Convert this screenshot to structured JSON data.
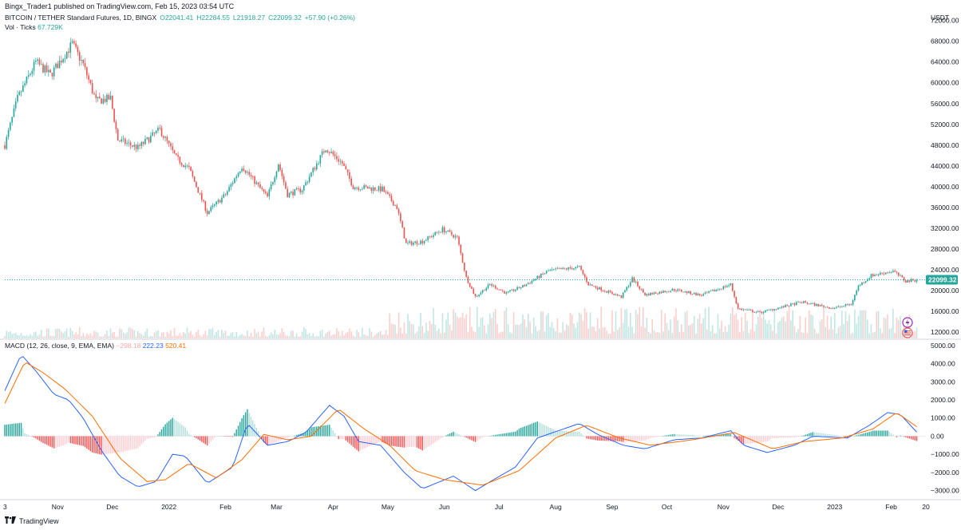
{
  "header": {
    "publisher_line": "Bingx_Trader1 published on TradingView.com, Feb 15, 2023 03:54 UTC",
    "symbol": "BITCOIN / TETHER Standard Futures, 1D, BINGX",
    "open": "O22041.41",
    "high": "H22284.55",
    "low": "L21918.27",
    "close": "C22099.32",
    "change": "+57.90 (+0.26%)",
    "vol_label": "Vol · Ticks",
    "vol_value": "67.729K",
    "macd_label": "MACD (12, 26, close, 9, EMA, EMA)",
    "macd_hist": "−298.18",
    "macd_line": "222.23",
    "macd_signal": "520.41",
    "currency": "USDT",
    "last_price_tag": "22099.32",
    "logo_text": "TradingView"
  },
  "colors": {
    "up": "#26a69a",
    "down": "#ef5350",
    "macd_line": "#2962ff",
    "signal_line": "#ff6d00",
    "last_price": "#26a69a"
  },
  "icons": [
    "flash-icon",
    "us-flag-icon",
    "tradingview-logo-icon"
  ],
  "chart_data": [
    {
      "type": "candlestick",
      "title": "BITCOIN / TETHER Standard Futures, 1D, BINGX",
      "x_ticks": [
        "3",
        "Nov",
        "Dec",
        "2022",
        "Feb",
        "Mar",
        "Apr",
        "May",
        "Jun",
        "Jul",
        "Aug",
        "Sep",
        "Oct",
        "Nov",
        "Dec",
        "2023",
        "Feb",
        "20"
      ],
      "y_ticks": [
        "72000.00",
        "68000.00",
        "64000.00",
        "60000.00",
        "56000.00",
        "52000.00",
        "48000.00",
        "44000.00",
        "40000.00",
        "36000.00",
        "32000.00",
        "28000.00",
        "24000.00",
        "20000.00",
        "16000.00",
        "12000.00"
      ],
      "ylim": [
        10800,
        74400
      ],
      "last_price": 22099.32,
      "close_path": [
        {
          "x": "2021-10-03",
          "y": 48000
        },
        {
          "x": "2021-10-10",
          "y": 57000
        },
        {
          "x": "2021-10-20",
          "y": 64000
        },
        {
          "x": "2021-10-28",
          "y": 61500
        },
        {
          "x": "2021-11-09",
          "y": 67500
        },
        {
          "x": "2021-11-15",
          "y": 63500
        },
        {
          "x": "2021-11-22",
          "y": 56500
        },
        {
          "x": "2021-11-30",
          "y": 57000
        },
        {
          "x": "2021-12-04",
          "y": 49000
        },
        {
          "x": "2021-12-15",
          "y": 47500
        },
        {
          "x": "2021-12-27",
          "y": 51000
        },
        {
          "x": "2022-01-05",
          "y": 45500
        },
        {
          "x": "2022-01-12",
          "y": 43500
        },
        {
          "x": "2022-01-22",
          "y": 35000
        },
        {
          "x": "2022-02-01",
          "y": 38500
        },
        {
          "x": "2022-02-10",
          "y": 44000
        },
        {
          "x": "2022-02-24",
          "y": 38000
        },
        {
          "x": "2022-03-02",
          "y": 44500
        },
        {
          "x": "2022-03-07",
          "y": 38500
        },
        {
          "x": "2022-03-15",
          "y": 39500
        },
        {
          "x": "2022-03-28",
          "y": 47500
        },
        {
          "x": "2022-04-06",
          "y": 44500
        },
        {
          "x": "2022-04-12",
          "y": 40000
        },
        {
          "x": "2022-04-28",
          "y": 39500
        },
        {
          "x": "2022-05-06",
          "y": 36000
        },
        {
          "x": "2022-05-11",
          "y": 29000
        },
        {
          "x": "2022-05-20",
          "y": 29500
        },
        {
          "x": "2022-05-31",
          "y": 31800
        },
        {
          "x": "2022-06-08",
          "y": 30200
        },
        {
          "x": "2022-06-13",
          "y": 22500
        },
        {
          "x": "2022-06-18",
          "y": 18800
        },
        {
          "x": "2022-06-26",
          "y": 21200
        },
        {
          "x": "2022-07-05",
          "y": 19500
        },
        {
          "x": "2022-07-15",
          "y": 21000
        },
        {
          "x": "2022-07-28",
          "y": 23800
        },
        {
          "x": "2022-08-14",
          "y": 24500
        },
        {
          "x": "2022-08-19",
          "y": 21200
        },
        {
          "x": "2022-09-06",
          "y": 18800
        },
        {
          "x": "2022-09-12",
          "y": 22300
        },
        {
          "x": "2022-09-19",
          "y": 19200
        },
        {
          "x": "2022-10-05",
          "y": 20200
        },
        {
          "x": "2022-10-20",
          "y": 19100
        },
        {
          "x": "2022-11-05",
          "y": 21200
        },
        {
          "x": "2022-11-09",
          "y": 16500
        },
        {
          "x": "2022-11-21",
          "y": 15800
        },
        {
          "x": "2022-12-05",
          "y": 17000
        },
        {
          "x": "2022-12-14",
          "y": 17800
        },
        {
          "x": "2022-12-31",
          "y": 16600
        },
        {
          "x": "2023-01-10",
          "y": 17400
        },
        {
          "x": "2023-01-14",
          "y": 20900
        },
        {
          "x": "2023-01-21",
          "y": 22900
        },
        {
          "x": "2023-02-02",
          "y": 23800
        },
        {
          "x": "2023-02-09",
          "y": 21800
        },
        {
          "x": "2023-02-15",
          "y": 22099.32
        }
      ]
    },
    {
      "type": "bar",
      "title": "Vol · Ticks",
      "last_value": "67.729K"
    },
    {
      "type": "line",
      "title": "MACD (12, 26, close, 9, EMA, EMA)",
      "y_ticks": [
        "5000.00",
        "4000.00",
        "3000.00",
        "2000.00",
        "1000.00",
        "0.00",
        "−1000.00",
        "−2000.00",
        "−3000.00"
      ],
      "ylim": [
        -3500,
        5300
      ],
      "series": [
        {
          "name": "MACD",
          "points": [
            {
              "x": "2021-10-03",
              "y": 2500
            },
            {
              "x": "2021-10-12",
              "y": 4500
            },
            {
              "x": "2021-10-20",
              "y": 3600
            },
            {
              "x": "2021-10-30",
              "y": 2300
            },
            {
              "x": "2021-11-07",
              "y": 2000
            },
            {
              "x": "2021-11-15",
              "y": 1000
            },
            {
              "x": "2021-11-25",
              "y": -800
            },
            {
              "x": "2021-12-05",
              "y": -2200
            },
            {
              "x": "2021-12-15",
              "y": -2800
            },
            {
              "x": "2021-12-25",
              "y": -2500
            },
            {
              "x": "2022-01-03",
              "y": -1000
            },
            {
              "x": "2022-01-10",
              "y": -1100
            },
            {
              "x": "2022-01-22",
              "y": -2600
            },
            {
              "x": "2022-02-05",
              "y": -1700
            },
            {
              "x": "2022-02-13",
              "y": 700
            },
            {
              "x": "2022-02-24",
              "y": -500
            },
            {
              "x": "2022-03-07",
              "y": -300
            },
            {
              "x": "2022-03-17",
              "y": 200
            },
            {
              "x": "2022-03-30",
              "y": 1700
            },
            {
              "x": "2022-04-07",
              "y": 1100
            },
            {
              "x": "2022-04-15",
              "y": -300
            },
            {
              "x": "2022-04-27",
              "y": -500
            },
            {
              "x": "2022-05-10",
              "y": -2000
            },
            {
              "x": "2022-05-20",
              "y": -2900
            },
            {
              "x": "2022-06-06",
              "y": -2200
            },
            {
              "x": "2022-06-18",
              "y": -3000
            },
            {
              "x": "2022-06-28",
              "y": -2400
            },
            {
              "x": "2022-07-10",
              "y": -1700
            },
            {
              "x": "2022-07-22",
              "y": -100
            },
            {
              "x": "2022-08-14",
              "y": 700
            },
            {
              "x": "2022-08-24",
              "y": 100
            },
            {
              "x": "2022-09-07",
              "y": -500
            },
            {
              "x": "2022-09-19",
              "y": -700
            },
            {
              "x": "2022-10-05",
              "y": -200
            },
            {
              "x": "2022-10-20",
              "y": -100
            },
            {
              "x": "2022-11-05",
              "y": 300
            },
            {
              "x": "2022-11-12",
              "y": -500
            },
            {
              "x": "2022-11-25",
              "y": -900
            },
            {
              "x": "2022-12-10",
              "y": -500
            },
            {
              "x": "2022-12-20",
              "y": 0
            },
            {
              "x": "2023-01-08",
              "y": -100
            },
            {
              "x": "2023-01-20",
              "y": 600
            },
            {
              "x": "2023-01-30",
              "y": 1300
            },
            {
              "x": "2023-02-06",
              "y": 1200
            },
            {
              "x": "2023-02-15",
              "y": 222.23
            }
          ]
        },
        {
          "name": "Signal",
          "points": [
            {
              "x": "2021-10-03",
              "y": 1800
            },
            {
              "x": "2021-10-14",
              "y": 4100
            },
            {
              "x": "2021-10-24",
              "y": 3500
            },
            {
              "x": "2021-11-05",
              "y": 2600
            },
            {
              "x": "2021-11-20",
              "y": 1100
            },
            {
              "x": "2021-12-05",
              "y": -1200
            },
            {
              "x": "2021-12-20",
              "y": -2500
            },
            {
              "x": "2021-12-30",
              "y": -2400
            },
            {
              "x": "2022-01-12",
              "y": -1500
            },
            {
              "x": "2022-01-27",
              "y": -2300
            },
            {
              "x": "2022-02-10",
              "y": -1300
            },
            {
              "x": "2022-02-22",
              "y": 100
            },
            {
              "x": "2022-03-07",
              "y": -200
            },
            {
              "x": "2022-03-20",
              "y": 0
            },
            {
              "x": "2022-04-04",
              "y": 1500
            },
            {
              "x": "2022-04-18",
              "y": 400
            },
            {
              "x": "2022-05-02",
              "y": -500
            },
            {
              "x": "2022-05-16",
              "y": -1900
            },
            {
              "x": "2022-06-01",
              "y": -2400
            },
            {
              "x": "2022-06-22",
              "y": -2700
            },
            {
              "x": "2022-07-12",
              "y": -1900
            },
            {
              "x": "2022-08-01",
              "y": -100
            },
            {
              "x": "2022-08-18",
              "y": 600
            },
            {
              "x": "2022-09-05",
              "y": -100
            },
            {
              "x": "2022-09-22",
              "y": -500
            },
            {
              "x": "2022-10-15",
              "y": -200
            },
            {
              "x": "2022-11-07",
              "y": 200
            },
            {
              "x": "2022-11-28",
              "y": -700
            },
            {
              "x": "2022-12-15",
              "y": -300
            },
            {
              "x": "2023-01-05",
              "y": -100
            },
            {
              "x": "2023-01-22",
              "y": 400
            },
            {
              "x": "2023-02-04",
              "y": 1300
            },
            {
              "x": "2023-02-15",
              "y": 520.41
            }
          ]
        }
      ]
    }
  ]
}
